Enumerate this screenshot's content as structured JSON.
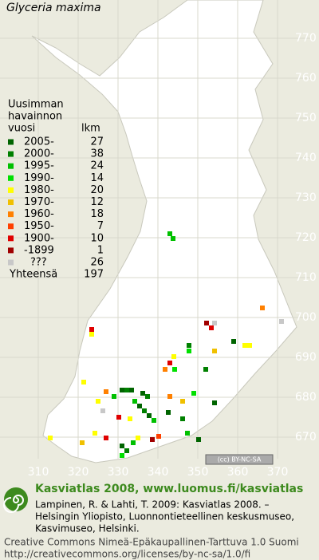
{
  "title": "Glyceria maxima",
  "legend": {
    "heading": [
      "Uusimman",
      "havainnon",
      "vuosi"
    ],
    "count_heading": "lkm",
    "rows": [
      {
        "label": "2005-",
        "count": 27,
        "color": "#006400"
      },
      {
        "label": "2000-",
        "count": 38,
        "color": "#008000"
      },
      {
        "label": "1995-",
        "count": 24,
        "color": "#00c000"
      },
      {
        "label": "1990-",
        "count": 14,
        "color": "#00e000"
      },
      {
        "label": "1980-",
        "count": 20,
        "color": "#ffff00"
      },
      {
        "label": "1970-",
        "count": 12,
        "color": "#f0c000"
      },
      {
        "label": "1960-",
        "count": 18,
        "color": "#ff8000"
      },
      {
        "label": "1950-",
        "count": 7,
        "color": "#ff4000"
      },
      {
        "label": "1900-",
        "count": 10,
        "color": "#e00000"
      },
      {
        "label": "-1899",
        "count": 1,
        "color": "#a00000"
      },
      {
        "label": "???",
        "count": 26,
        "color": "#c8c8c8"
      }
    ],
    "total": {
      "label": "Yhteensä",
      "count": 197
    }
  },
  "grid": {
    "y_labels": [
      770,
      760,
      750,
      740,
      730,
      720,
      710,
      700,
      690,
      680,
      670
    ],
    "x_labels": [
      310,
      320,
      330,
      340,
      350,
      360,
      370
    ]
  },
  "license_badge": "(cc) BY-NC-SA",
  "footer": {
    "heading": "Kasviatlas 2008, www.luomus.fi/kasviatlas",
    "citation": [
      "Lampinen, R. & Lahti, T. 2009: Kasviatlas 2008. –",
      "Helsingin Yliopisto, Luonnontieteellinen keskusmuseo,",
      "Kasvimuseo, Helsinki."
    ],
    "license": [
      "Creative Commons Nimeä-Epäkaupallinen-Tarttuva 1.0 Suomi",
      "http://creativecommons.org/licenses/by-nc-sa/1.0/fi"
    ]
  }
}
